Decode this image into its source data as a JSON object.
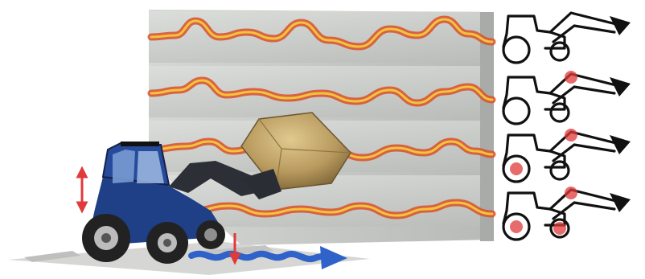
{
  "figure": {
    "panels": [
      {
        "label": "",
        "icon": "tractor-loader-icon",
        "highlights": []
      },
      {
        "label": "",
        "icon": "tractor-loader-icon",
        "highlights": [
          "boom-joint"
        ]
      },
      {
        "label": "",
        "icon": "tractor-loader-icon",
        "highlights": [
          "boom-joint",
          "front-axle"
        ]
      },
      {
        "label": "",
        "icon": "tractor-loader-icon",
        "highlights": [
          "boom-joint",
          "front-axle",
          "rear-axle"
        ]
      }
    ],
    "colors": {
      "background": "#ffffff",
      "panel": "#c9cbc8",
      "panel_shadow": "#9fa19e",
      "wave_outer": "#d9502a",
      "wave_inner": "#f4c33c",
      "road_wave": "#2f63c9",
      "tractor_blue": "#1f3f86",
      "bale": "#b89a5e",
      "icon_stroke": "#111111",
      "highlight": "#e03a3a"
    }
  }
}
